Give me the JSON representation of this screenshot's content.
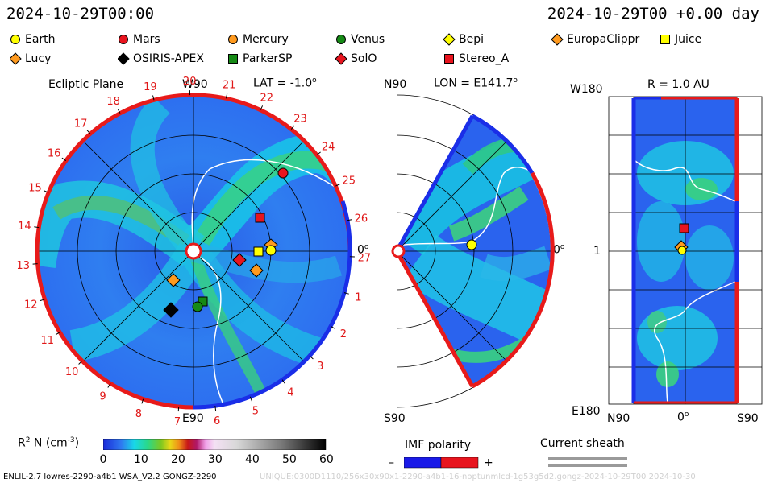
{
  "header": {
    "left_timestamp": "2024-10-29T00:00",
    "right_timestamp": "2024-10-29T00 +0.00 day"
  },
  "legend": [
    {
      "label": "Earth",
      "shape": "circle",
      "color": "#ffff00"
    },
    {
      "label": "Mars",
      "shape": "circle",
      "color": "#e8141e"
    },
    {
      "label": "Mercury",
      "shape": "circle",
      "color": "#ff9a1e"
    },
    {
      "label": "Venus",
      "shape": "circle",
      "color": "#168a16"
    },
    {
      "label": "Bepi",
      "shape": "diamond",
      "color": "#ffff00"
    },
    {
      "label": "EuropaClippr",
      "shape": "diamond",
      "color": "#ff9a1e"
    },
    {
      "label": "Juice",
      "shape": "square",
      "color": "#ffff00"
    },
    {
      "label": "Lucy",
      "shape": "diamond",
      "color": "#ff9a1e"
    },
    {
      "label": "OSIRIS-APEX",
      "shape": "diamond",
      "color": "#000000"
    },
    {
      "label": "ParkerSP",
      "shape": "square",
      "color": "#168a16"
    },
    {
      "label": "SolO",
      "shape": "diamond",
      "color": "#e8141e"
    },
    {
      "label": "Stereo_A",
      "shape": "square",
      "color": "#e8141e"
    }
  ],
  "ecliptic": {
    "title": "Ecliptic Plane",
    "top_label": "W90",
    "bottom_label": "E90",
    "right_label": "0",
    "lat_label": "LAT = -1.0",
    "carrington_ticks": [
      "1",
      "2",
      "3",
      "4",
      "5",
      "6",
      "7",
      "8",
      "9",
      "10",
      "11",
      "12",
      "13",
      "14",
      "15",
      "16",
      "17",
      "18",
      "19",
      "20",
      "21",
      "22",
      "23",
      "24",
      "25",
      "26",
      "27"
    ]
  },
  "meridional": {
    "top_label": "N90",
    "bottom_label": "S90",
    "right_label": "0",
    "lon_label": "LON = E141.7"
  },
  "sphere": {
    "r_label": "R = 1.0 AU",
    "top_left": "W180",
    "mid_left": "1",
    "bottom_left": "E180",
    "bottom_labels": [
      "N90",
      "0",
      "S90"
    ]
  },
  "colorbar": {
    "title": "R",
    "title_sup": "2",
    "title_rest": "N (cm",
    "title_sup2": "-3",
    "title_end": ")",
    "ticks": [
      "0",
      "10",
      "20",
      "30",
      "40",
      "50",
      "60"
    ]
  },
  "imf": {
    "title": "IMF polarity",
    "minus": "–",
    "plus": "+"
  },
  "sheath": {
    "title": "Current sheath"
  },
  "footer": {
    "left": "ENLIL-2.7 lowres-2290-a4b1 WSA_V2.2 GONGZ-2290",
    "right": "UNIQUE:0300D1110/256x30x90x1-2290-a4b1-16-noptunmlcd-1g53g5d2.gongz-2024-10-29T00   2024-10-30"
  }
}
